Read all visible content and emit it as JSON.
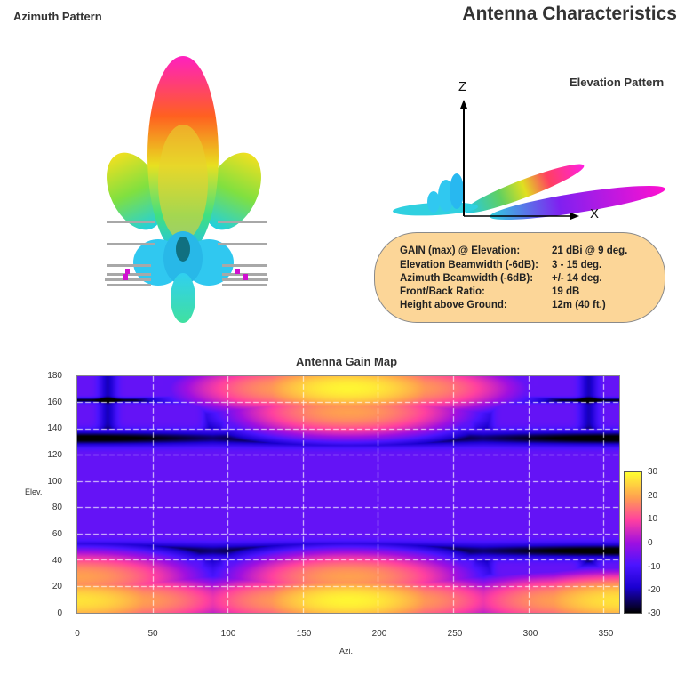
{
  "header": {
    "azimuth_title": "Azimuth Pattern",
    "main_title": "Antenna Characteristics",
    "elevation_title": "Elevation Pattern"
  },
  "elevation_axes": {
    "z_label": "Z",
    "x_label": "X"
  },
  "specs": [
    {
      "label": "GAIN (max) @ Elevation:",
      "value": "21 dBi @ 9 deg."
    },
    {
      "label": "Elevation Beamwidth (-6dB):",
      "value": "3 - 15 deg."
    },
    {
      "label": "Azimuth Beamwidth (-6dB):",
      "value": "+/- 14 deg."
    },
    {
      "label": "Front/Back Ratio:",
      "value": "19 dB"
    },
    {
      "label": "Height above Ground:",
      "value": "12m (40 ft.)"
    }
  ],
  "colors": {
    "info_box_fill": "#fcd698",
    "colormap": [
      "#000000",
      "#1a00d0",
      "#4b14ff",
      "#a010e0",
      "#ff40a0",
      "#ffa050",
      "#ffff30"
    ]
  },
  "chart_data": {
    "type": "heatmap",
    "title": "Antenna Gain Map",
    "xlabel": "Azi.",
    "ylabel": "Elev.",
    "xlim": [
      0,
      360
    ],
    "ylim": [
      0,
      180
    ],
    "x_ticks": [
      "0",
      "50",
      "100",
      "150",
      "200",
      "250",
      "300",
      "350"
    ],
    "y_ticks": [
      "180",
      "160",
      "140",
      "120",
      "100",
      "80",
      "60",
      "40",
      "20",
      "0"
    ],
    "colorbar": {
      "range": [
        -30,
        30
      ],
      "ticks": [
        "30",
        "20",
        "10",
        "0",
        "-10",
        "-20",
        "-30"
      ]
    },
    "grid": true,
    "peak_gain_db": 21,
    "peak_elevation_deg": 9,
    "lobes": [
      {
        "elev": 9,
        "azi": 180,
        "gain_db": 21
      },
      {
        "elev": 9,
        "azi": 0,
        "gain_db": 19
      },
      {
        "elev": 9,
        "azi": 360,
        "gain_db": 19
      },
      {
        "elev": 9,
        "azi": 145,
        "gain_db": 12
      },
      {
        "elev": 9,
        "azi": 215,
        "gain_db": 12
      },
      {
        "elev": 9,
        "azi": 35,
        "gain_db": 12
      },
      {
        "elev": 9,
        "azi": 325,
        "gain_db": 12
      },
      {
        "elev": 27,
        "azi": 180,
        "gain_db": 12
      },
      {
        "elev": 27,
        "azi": 0,
        "gain_db": 12
      },
      {
        "elev": 171,
        "azi": 180,
        "gain_db": 21
      },
      {
        "elev": 171,
        "azi": 145,
        "gain_db": 12
      },
      {
        "elev": 171,
        "azi": 215,
        "gain_db": 12
      },
      {
        "elev": 153,
        "azi": 180,
        "gain_db": 12
      }
    ]
  }
}
